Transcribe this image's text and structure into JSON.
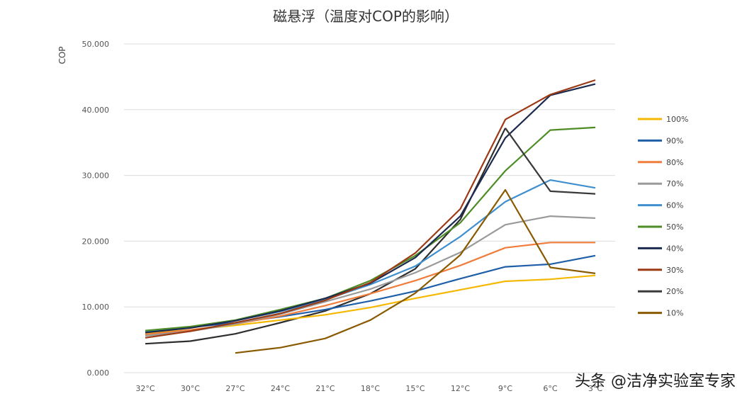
{
  "chart_data": {
    "type": "line",
    "title": "磁悬浮（温度对COP的影响）",
    "ylabel": "COP",
    "xlabel": "",
    "ylim": [
      0,
      50
    ],
    "yticks": [
      "0.000",
      "10.000",
      "20.000",
      "30.000",
      "40.000",
      "50.000"
    ],
    "categories": [
      "32°C",
      "30°C",
      "27°C",
      "24°C",
      "21°C",
      "18°C",
      "15°C",
      "12°C",
      "9°C",
      "6°C",
      "3°C"
    ],
    "legend_position": "right",
    "grid": true,
    "series": [
      {
        "name": "100%",
        "color": "#f5b800",
        "values": [
          6.0,
          6.5,
          7.2,
          8.0,
          8.8,
          9.9,
          11.3,
          12.6,
          13.9,
          14.2,
          14.8
        ]
      },
      {
        "name": "90%",
        "color": "#1f5fa8",
        "values": [
          6.3,
          6.9,
          7.6,
          8.5,
          9.6,
          10.9,
          12.4,
          14.3,
          16.1,
          16.5,
          17.8
        ]
      },
      {
        "name": "80%",
        "color": "#ef7d3c",
        "values": [
          5.8,
          6.5,
          7.4,
          8.6,
          10.2,
          12.0,
          14.0,
          16.3,
          19.0,
          19.8,
          19.8
        ]
      },
      {
        "name": "70%",
        "color": "#9a9a9a",
        "values": [
          5.6,
          6.3,
          7.4,
          8.9,
          10.8,
          12.7,
          15.2,
          18.3,
          22.5,
          23.8,
          23.5
        ]
      },
      {
        "name": "60%",
        "color": "#3f8fd0",
        "values": [
          6.2,
          6.9,
          7.9,
          9.3,
          11.1,
          13.4,
          16.2,
          20.7,
          26.0,
          29.3,
          28.1
        ]
      },
      {
        "name": "50%",
        "color": "#4e8c26",
        "values": [
          6.4,
          7.0,
          8.0,
          9.6,
          11.3,
          14.0,
          17.8,
          22.8,
          30.7,
          36.9,
          37.3
        ]
      },
      {
        "name": "40%",
        "color": "#1b2a4e",
        "values": [
          6.1,
          6.8,
          7.9,
          9.4,
          11.3,
          13.6,
          17.5,
          23.8,
          35.7,
          42.2,
          43.9
        ]
      },
      {
        "name": "30%",
        "color": "#9b3a14",
        "values": [
          5.3,
          6.3,
          7.6,
          9.0,
          11.0,
          13.7,
          18.2,
          24.9,
          38.5,
          42.3,
          44.5
        ]
      },
      {
        "name": "20%",
        "color": "#3a3a3a",
        "values": [
          null,
          null,
          null,
          null,
          null,
          null,
          null,
          null,
          37.2,
          27.6,
          27.2
        ]
      },
      {
        "name": "10%",
        "color": "#8a5a00",
        "values": [
          null,
          null,
          3.0,
          3.8,
          5.2,
          8.0,
          12.1,
          17.9,
          27.8,
          16.0,
          15.1
        ]
      }
    ],
    "extra_lines": [
      {
        "series": "20%",
        "color": "#2e2e2e",
        "points": [
          [
            0,
            4.4
          ],
          [
            1,
            4.8
          ],
          [
            2,
            5.9
          ],
          [
            3,
            7.6
          ],
          [
            4,
            9.4
          ],
          [
            5,
            12.0
          ],
          [
            6,
            15.8
          ],
          [
            7,
            23.3
          ],
          [
            8,
            37.2
          ]
        ]
      }
    ]
  },
  "watermark": "头条 @洁净实验室专家"
}
